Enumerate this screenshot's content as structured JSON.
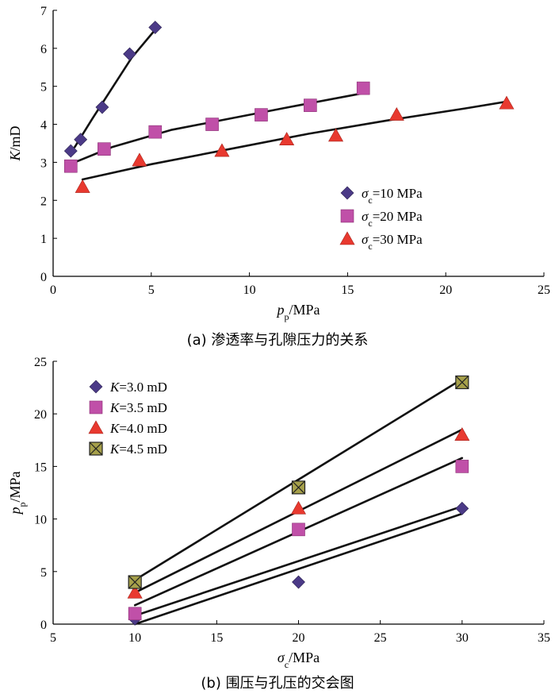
{
  "chart_data": [
    {
      "panel": "a",
      "type": "scatter",
      "caption": "(a) 渗透率与孔隙压力的关系",
      "xlabel_main": "p",
      "xlabel_sub": "p",
      "xlabel_unit": "/MPa",
      "ylabel_main": "K",
      "ylabel_unit": "/mD",
      "xlim": [
        0,
        25
      ],
      "ylim": [
        0,
        7
      ],
      "xticks": [
        0,
        5,
        10,
        15,
        20,
        25
      ],
      "yticks": [
        1,
        2,
        3,
        4,
        5,
        6,
        7
      ],
      "grid": false,
      "legend_position": "bottom-right",
      "series": [
        {
          "name": "σc=10 MPa",
          "legend_main": "σ",
          "legend_sub": "c",
          "legend_rest": "=10 MPa",
          "marker": "diamond",
          "color": "#4b3a87",
          "points": [
            [
              0.9,
              3.3
            ],
            [
              1.4,
              3.6
            ],
            [
              2.5,
              4.45
            ],
            [
              3.9,
              5.85
            ],
            [
              5.2,
              6.55
            ]
          ],
          "fit": [
            [
              1.1,
              3.4
            ],
            [
              2.0,
              4.15
            ],
            [
              3.0,
              4.95
            ],
            [
              4.0,
              5.75
            ],
            [
              5.3,
              6.55
            ]
          ]
        },
        {
          "name": "σc=20 MPa",
          "legend_main": "σ",
          "legend_sub": "c",
          "legend_rest": "=20 MPa",
          "marker": "square",
          "color": "#c050a8",
          "points": [
            [
              0.9,
              2.9
            ],
            [
              2.6,
              3.35
            ],
            [
              5.2,
              3.8
            ],
            [
              8.1,
              4.0
            ],
            [
              10.6,
              4.25
            ],
            [
              13.1,
              4.5
            ],
            [
              15.8,
              4.95
            ]
          ],
          "fit": [
            [
              1.1,
              3.0
            ],
            [
              3.0,
              3.4
            ],
            [
              6.0,
              3.85
            ],
            [
              9.0,
              4.15
            ],
            [
              12.0,
              4.45
            ],
            [
              15.8,
              4.82
            ]
          ]
        },
        {
          "name": "σc=30 MPa",
          "legend_main": "σ",
          "legend_sub": "c",
          "legend_rest": "=30 MPa",
          "marker": "triangle",
          "color": "#e8392f",
          "points": [
            [
              1.5,
              2.35
            ],
            [
              4.4,
              3.05
            ],
            [
              8.6,
              3.3
            ],
            [
              11.9,
              3.6
            ],
            [
              14.4,
              3.7
            ],
            [
              17.5,
              4.25
            ],
            [
              23.1,
              4.55
            ]
          ],
          "fit": [
            [
              1.5,
              2.55
            ],
            [
              5.0,
              2.95
            ],
            [
              9.0,
              3.35
            ],
            [
              13.0,
              3.75
            ],
            [
              17.0,
              4.1
            ],
            [
              21.0,
              4.42
            ],
            [
              23.1,
              4.6
            ]
          ]
        }
      ]
    },
    {
      "panel": "b",
      "type": "scatter",
      "caption": "(b) 围压与孔压的交会图",
      "xlabel_main": "σ",
      "xlabel_sub": "c",
      "xlabel_unit": "/MPa",
      "ylabel_main": "p",
      "ylabel_sub": "p",
      "ylabel_unit": "/MPa",
      "xlim": [
        5,
        35
      ],
      "ylim": [
        0,
        25
      ],
      "xticks": [
        5,
        10,
        15,
        20,
        25,
        30,
        35
      ],
      "yticks": [
        0,
        5,
        10,
        15,
        20,
        25
      ],
      "grid": false,
      "legend_position": "top-left",
      "series": [
        {
          "name": "K=3.0 mD",
          "legend_main": "K",
          "legend_rest": "=3.0 mD",
          "marker": "diamond",
          "color": "#4b3a87",
          "points": [
            [
              10,
              0.5
            ],
            [
              20,
              4.0
            ],
            [
              30,
              11.0
            ]
          ],
          "fit": [
            [
              10,
              0
            ],
            [
              30,
              10.5
            ]
          ]
        },
        {
          "name": "K=3.5 mD",
          "legend_main": "K",
          "legend_rest": "=3.5 mD",
          "marker": "square",
          "color": "#c050a8",
          "points": [
            [
              10,
              1.0
            ],
            [
              20,
              9.0
            ],
            [
              30,
              15.0
            ]
          ],
          "fit": [
            [
              10,
              0.8
            ],
            [
              30,
              11.2
            ]
          ]
        },
        {
          "name": "K=4.0 mD",
          "legend_main": "K",
          "legend_rest": "=4.0 mD",
          "marker": "triangle",
          "color": "#e8392f",
          "points": [
            [
              10,
              3.0
            ],
            [
              20,
              11.0
            ],
            [
              30,
              18.0
            ]
          ],
          "fit": [
            [
              10,
              1.8
            ],
            [
              30,
              15.8
            ]
          ]
        },
        {
          "name": "K=4.5 mD",
          "legend_main": "K",
          "legend_rest": "=4.5 mD",
          "marker": "xsquare",
          "color": "#a6a04a",
          "points": [
            [
              10,
              4.0
            ],
            [
              20,
              13.0
            ],
            [
              30,
              23.0
            ]
          ],
          "fit": [
            [
              10,
              3.0
            ],
            [
              30,
              18.5
            ]
          ]
        }
      ],
      "extra_lines": [
        {
          "fit": [
            [
              10,
              4.2
            ],
            [
              30,
              23.3
            ]
          ]
        }
      ]
    }
  ]
}
